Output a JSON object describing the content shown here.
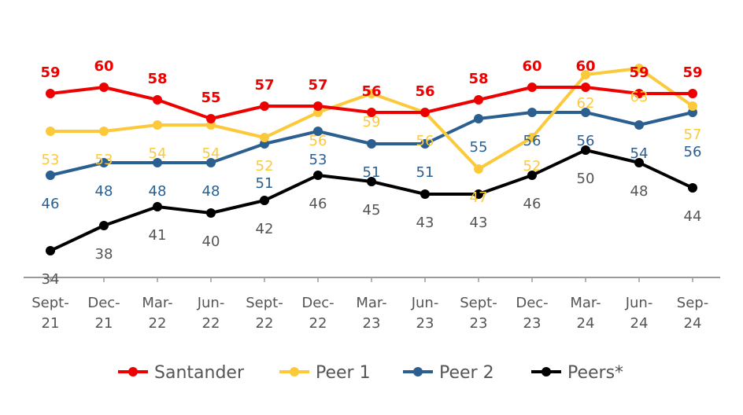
{
  "chart_data": {
    "type": "line",
    "title": "",
    "xlabel": "",
    "ylabel": "",
    "categories": [
      [
        "Sept-",
        "21"
      ],
      [
        "Dec-",
        "21"
      ],
      [
        "Mar-",
        "22"
      ],
      [
        "Jun-",
        "22"
      ],
      [
        "Sept-",
        "22"
      ],
      [
        "Dec-",
        "22"
      ],
      [
        "Mar-",
        "23"
      ],
      [
        "Jun-",
        "23"
      ],
      [
        "Sept-",
        "23"
      ],
      [
        "Dec-",
        "23"
      ],
      [
        "Mar-",
        "24"
      ],
      [
        "Jun-",
        "24"
      ],
      [
        "Sep-",
        "24"
      ]
    ],
    "ylim": [
      30,
      65
    ],
    "grid": false,
    "legend_position": "bottom",
    "series": [
      {
        "name": "Santander",
        "color": "#ec0000",
        "label_color": "#ec0000",
        "label_bold": true,
        "label_pos": "above",
        "values": [
          59,
          60,
          58,
          55,
          57,
          57,
          56,
          56,
          58,
          60,
          60,
          59,
          59
        ]
      },
      {
        "name": "Peer 1",
        "color": "#fcc93a",
        "label_color": "#fcc93a",
        "label_bold": false,
        "label_pos": "below",
        "values": [
          53,
          53,
          54,
          54,
          52,
          56,
          59,
          56,
          47,
          52,
          62,
          63,
          57
        ]
      },
      {
        "name": "Peer 2",
        "color": "#2a5f8f",
        "label_color": "#2a5f8f",
        "label_bold": false,
        "label_pos": "below",
        "values": [
          46,
          48,
          48,
          48,
          51,
          53,
          51,
          51,
          55,
          56,
          56,
          54,
          56
        ]
      },
      {
        "name": "Peers*",
        "color": "#000000",
        "label_color": "#555555",
        "label_bold": false,
        "label_pos": "below",
        "values": [
          34,
          38,
          41,
          40,
          42,
          46,
          45,
          43,
          43,
          46,
          50,
          48,
          44
        ]
      }
    ]
  }
}
